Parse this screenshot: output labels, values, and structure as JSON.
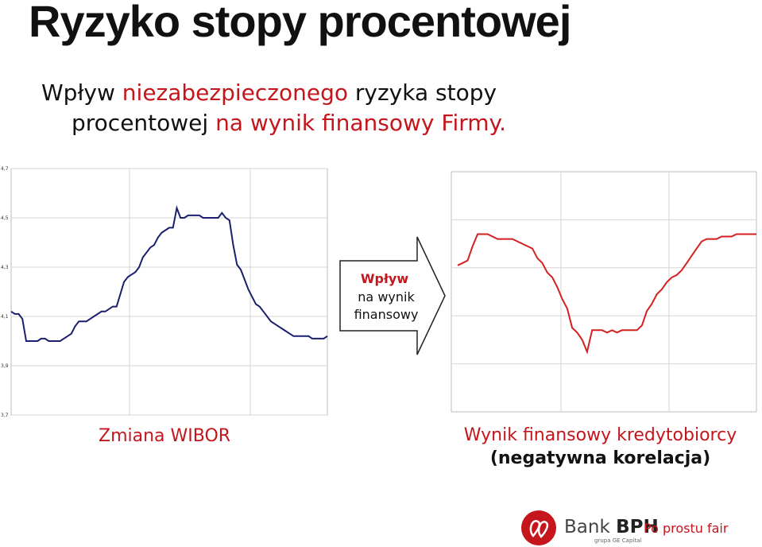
{
  "slide": {
    "title": "Ryzyko stopy procentowej",
    "subtitle_parts": [
      "Wpływ ",
      "niezabezpieczonego",
      " ryzyka stopy",
      "procentowej ",
      "na wynik finansowy Firmy."
    ]
  },
  "arrow": {
    "title": "Wpływ",
    "line2": "na wynik",
    "line3": "finansowy"
  },
  "captions": {
    "left": "Zmiana WIBOR",
    "right_line1": "Wynik finansowy kredytobiorcy",
    "right_line2": "(negatywna korelacja)"
  },
  "logo": {
    "brand_prefix": "Bank ",
    "brand_name": "BPH",
    "brand_sub": "grupa GE Capital",
    "slogan": "Po prostu fair"
  },
  "colors": {
    "accent": "#c4161c",
    "series_left": "#1a1f6e",
    "series_right": "#d42020"
  },
  "chart_data": [
    {
      "type": "line",
      "title": "",
      "xlabel": "",
      "ylabel": "",
      "ylim": [
        3.7,
        4.7
      ],
      "yticks": [
        "3,7",
        "3,9",
        "4,1",
        "4,3",
        "4,5",
        "4,7"
      ],
      "grid": true,
      "series": [
        {
          "values": [
            4.12,
            4.11,
            4.11,
            4.09,
            4.0,
            4.0,
            4.0,
            4.0,
            4.01,
            4.01,
            4.0,
            4.0,
            4.0,
            4.0,
            4.01,
            4.02,
            4.03,
            4.06,
            4.08,
            4.08,
            4.08,
            4.09,
            4.1,
            4.11,
            4.12,
            4.12,
            4.13,
            4.14,
            4.14,
            4.19,
            4.24,
            4.26,
            4.27,
            4.28,
            4.3,
            4.34,
            4.36,
            4.38,
            4.39,
            4.42,
            4.44,
            4.45,
            4.46,
            4.46,
            4.54,
            4.5,
            4.5,
            4.51,
            4.51,
            4.51,
            4.51,
            4.5,
            4.5,
            4.5,
            4.5,
            4.5,
            4.52,
            4.5,
            4.49,
            4.39,
            4.31,
            4.29,
            4.25,
            4.21,
            4.18,
            4.15,
            4.14,
            4.12,
            4.1,
            4.08,
            4.07,
            4.06,
            4.05,
            4.04,
            4.03,
            4.02,
            4.02,
            4.02,
            4.02,
            4.02,
            4.01,
            4.01,
            4.01,
            4.01,
            4.02
          ]
        }
      ]
    },
    {
      "type": "line",
      "title": "",
      "xlabel": "",
      "ylabel": "",
      "series": [
        {
          "values": [
            4.31,
            4.32,
            4.33,
            4.39,
            4.44,
            4.44,
            4.44,
            4.43,
            4.42,
            4.42,
            4.42,
            4.42,
            4.41,
            4.4,
            4.39,
            4.38,
            4.34,
            4.32,
            4.28,
            4.26,
            4.22,
            4.17,
            4.13,
            4.05,
            4.03,
            4.0,
            3.95,
            4.04,
            4.04,
            4.04,
            4.03,
            4.04,
            4.03,
            4.04,
            4.04,
            4.04,
            4.04,
            4.06,
            4.12,
            4.15,
            4.19,
            4.21,
            4.24,
            4.26,
            4.27,
            4.29,
            4.32,
            4.35,
            4.38,
            4.41,
            4.42,
            4.42,
            4.42,
            4.43,
            4.43,
            4.43,
            4.44,
            4.44,
            4.44,
            4.44,
            4.44
          ]
        }
      ]
    }
  ]
}
